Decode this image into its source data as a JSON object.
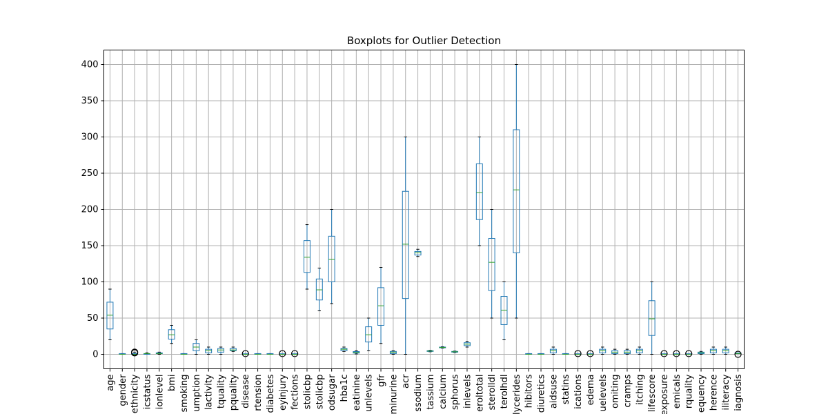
{
  "chart_data": {
    "type": "boxplot",
    "title": "Boxplots for Outlier Detection",
    "xlabel": "",
    "ylabel": "",
    "ylim": [
      -20,
      420
    ],
    "yticks": [
      0,
      50,
      100,
      150,
      200,
      250,
      300,
      350,
      400
    ],
    "grid": true,
    "categories": [
      {
        "label": "age",
        "min": 20,
        "q1": 35,
        "median": 54,
        "q3": 72,
        "max": 90
      },
      {
        "label": "gender",
        "min": 0,
        "q1": 0,
        "median": 0,
        "q3": 1,
        "max": 1
      },
      {
        "label": "ethnicity",
        "min": 0,
        "q1": 0,
        "median": 0,
        "q3": 1,
        "max": 3,
        "outliers": [
          2,
          3
        ]
      },
      {
        "label": "icstatus",
        "min": 0,
        "q1": 0,
        "median": 1,
        "q3": 1,
        "max": 2
      },
      {
        "label": "ionlevel",
        "min": 0,
        "q1": 1,
        "median": 1,
        "q3": 2,
        "max": 3
      },
      {
        "label": "bmi",
        "min": 15,
        "q1": 21,
        "median": 27,
        "q3": 34,
        "max": 40
      },
      {
        "label": "smoking",
        "min": 0,
        "q1": 0,
        "median": 0,
        "q3": 1,
        "max": 1
      },
      {
        "label": "umption",
        "min": 0,
        "q1": 5,
        "median": 10,
        "q3": 15,
        "max": 20
      },
      {
        "label": "lactivity",
        "min": 0,
        "q1": 2,
        "median": 5,
        "q3": 7,
        "max": 10
      },
      {
        "label": "tquality",
        "min": 0,
        "q1": 3,
        "median": 6,
        "q3": 8,
        "max": 10
      },
      {
        "label": "pquality",
        "min": 4,
        "q1": 5,
        "median": 6,
        "q3": 8,
        "max": 10
      },
      {
        "label": "disease",
        "min": 0,
        "q1": 0,
        "median": 0,
        "q3": 0,
        "max": 0,
        "outliers": [
          1
        ]
      },
      {
        "label": "rtension",
        "min": 0,
        "q1": 0,
        "median": 0,
        "q3": 1,
        "max": 1
      },
      {
        "label": "diabetes",
        "min": 0,
        "q1": 0,
        "median": 0,
        "q3": 1,
        "max": 1
      },
      {
        "label": "eyinjury",
        "min": 0,
        "q1": 0,
        "median": 0,
        "q3": 0,
        "max": 0,
        "outliers": [
          1
        ]
      },
      {
        "label": "fections",
        "min": 0,
        "q1": 0,
        "median": 0,
        "q3": 0,
        "max": 0,
        "outliers": [
          1
        ]
      },
      {
        "label": "stolicbp",
        "min": 90,
        "q1": 113,
        "median": 134,
        "q3": 157,
        "max": 179
      },
      {
        "label": "stolicbp",
        "min": 60,
        "q1": 75,
        "median": 89,
        "q3": 104,
        "max": 119
      },
      {
        "label": "odsugar",
        "min": 70,
        "q1": 100,
        "median": 131,
        "q3": 163,
        "max": 200
      },
      {
        "label": "hba1c",
        "min": 4,
        "q1": 5,
        "median": 7,
        "q3": 8,
        "max": 10
      },
      {
        "label": "eatinine",
        "min": 0.5,
        "q1": 1.7,
        "median": 2.7,
        "q3": 3.8,
        "max": 5
      },
      {
        "label": "unlevels",
        "min": 5,
        "q1": 17,
        "median": 27,
        "q3": 38,
        "max": 50
      },
      {
        "label": "gfr",
        "min": 15,
        "q1": 40,
        "median": 67,
        "q3": 92,
        "max": 120
      },
      {
        "label": "minurine",
        "min": 0,
        "q1": 1,
        "median": 3,
        "q3": 4,
        "max": 5
      },
      {
        "label": "acr",
        "min": 0,
        "q1": 77,
        "median": 152,
        "q3": 225,
        "max": 300
      },
      {
        "label": "ssodium",
        "min": 135,
        "q1": 137,
        "median": 140,
        "q3": 142,
        "max": 145
      },
      {
        "label": "tassium",
        "min": 3.5,
        "q1": 4,
        "median": 4.5,
        "q3": 5,
        "max": 5.5
      },
      {
        "label": "calcium",
        "min": 8.5,
        "q1": 9,
        "median": 9.5,
        "q3": 10,
        "max": 10.5
      },
      {
        "label": "sphorus",
        "min": 2.5,
        "q1": 3,
        "median": 3.5,
        "q3": 4,
        "max": 4.5
      },
      {
        "label": "inlevels",
        "min": 10,
        "q1": 12,
        "median": 14,
        "q3": 16,
        "max": 18
      },
      {
        "label": "eroltotal",
        "min": 150,
        "q1": 186,
        "median": 223,
        "q3": 263,
        "max": 300
      },
      {
        "label": "sterolldl",
        "min": 50,
        "q1": 88,
        "median": 127,
        "q3": 160,
        "max": 200
      },
      {
        "label": "terolhdl",
        "min": 20,
        "q1": 41,
        "median": 61,
        "q3": 80,
        "max": 100
      },
      {
        "label": "lycerides",
        "min": 50,
        "q1": 140,
        "median": 227,
        "q3": 310,
        "max": 400
      },
      {
        "label": "hibitors",
        "min": 0,
        "q1": 0,
        "median": 0,
        "q3": 1,
        "max": 1
      },
      {
        "label": "diuretics",
        "min": 0,
        "q1": 0,
        "median": 0,
        "q3": 1,
        "max": 1
      },
      {
        "label": "aidsuse",
        "min": 0,
        "q1": 2,
        "median": 5,
        "q3": 7,
        "max": 10
      },
      {
        "label": "statins",
        "min": 0,
        "q1": 0,
        "median": 0,
        "q3": 1,
        "max": 1
      },
      {
        "label": "ications",
        "min": 0,
        "q1": 0,
        "median": 0,
        "q3": 0,
        "max": 0,
        "outliers": [
          1
        ]
      },
      {
        "label": "edema",
        "min": 0,
        "q1": 0,
        "median": 0,
        "q3": 0,
        "max": 0,
        "outliers": [
          1
        ]
      },
      {
        "label": "uelevels",
        "min": 0,
        "q1": 2,
        "median": 5,
        "q3": 7,
        "max": 10
      },
      {
        "label": "omiting",
        "min": 0,
        "q1": 1,
        "median": 3,
        "q3": 5,
        "max": 7
      },
      {
        "label": "cramps",
        "min": 0,
        "q1": 1,
        "median": 3,
        "q3": 5,
        "max": 7
      },
      {
        "label": "itching",
        "min": 0,
        "q1": 2,
        "median": 5,
        "q3": 7,
        "max": 10
      },
      {
        "label": "lifescore",
        "min": 0,
        "q1": 26,
        "median": 49,
        "q3": 74,
        "max": 100
      },
      {
        "label": "exposure",
        "min": 0,
        "q1": 0,
        "median": 0,
        "q3": 0,
        "max": 0,
        "outliers": [
          1
        ]
      },
      {
        "label": "emicals",
        "min": 0,
        "q1": 0,
        "median": 0,
        "q3": 0,
        "max": 0,
        "outliers": [
          1
        ]
      },
      {
        "label": "rquality",
        "min": 0,
        "q1": 0,
        "median": 0,
        "q3": 0,
        "max": 0,
        "outliers": [
          1
        ]
      },
      {
        "label": "equency",
        "min": 0,
        "q1": 1,
        "median": 2,
        "q3": 3,
        "max": 4
      },
      {
        "label": "herence",
        "min": 0,
        "q1": 2,
        "median": 5,
        "q3": 7,
        "max": 10
      },
      {
        "label": "iliteracy",
        "min": 0,
        "q1": 2,
        "median": 5,
        "q3": 7,
        "max": 10
      },
      {
        "label": "iagnosis",
        "min": 1,
        "q1": 1,
        "median": 1,
        "q3": 1,
        "max": 1,
        "outliers": [
          0
        ]
      }
    ],
    "colors": {
      "box": "#1f77b4",
      "median": "#2ca02c",
      "grid": "#b0b0b0",
      "outlier": "#000000"
    }
  }
}
